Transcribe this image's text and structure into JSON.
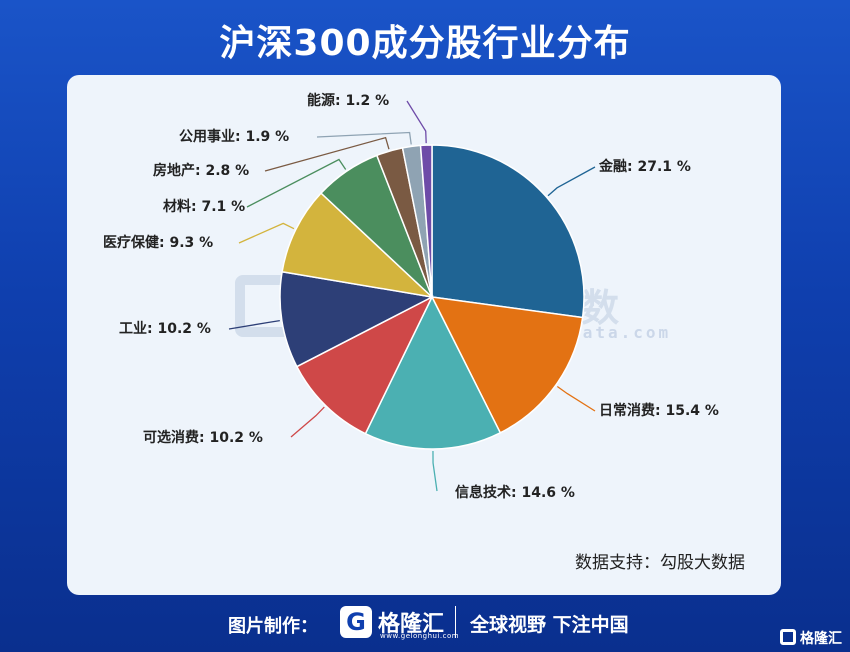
{
  "title": "沪深300成分股行业分布",
  "source": "数据支持：勾股大数据",
  "watermark": {
    "text": "勾股大数据",
    "url": "www.gogudata.com"
  },
  "footer": {
    "label": "图片制作：",
    "brand": "格隆汇",
    "url": "www.gelonghui.com",
    "slogan": "全球视野 下注中国",
    "corner": "格隆汇"
  },
  "chart_data": {
    "type": "pie",
    "title": "沪深300成分股行业分布",
    "unit": "%",
    "slices": [
      {
        "label": "金融",
        "value": 27.1,
        "color": "#1f6494",
        "text": "金融: 27.1 %"
      },
      {
        "label": "日常消费",
        "value": 15.4,
        "color": "#e37213",
        "text": "日常消费: 15.4 %"
      },
      {
        "label": "信息技术",
        "value": 14.6,
        "color": "#4bb0b2",
        "text": "信息技术: 14.6 %"
      },
      {
        "label": "可选消费",
        "value": 10.2,
        "color": "#cf4848",
        "text": "可选消费: 10.2 %"
      },
      {
        "label": "工业",
        "value": 10.2,
        "color": "#2d3f77",
        "text": "工业: 10.2 %"
      },
      {
        "label": "医疗保健",
        "value": 9.3,
        "color": "#d3b43d",
        "text": "医疗保健: 9.3 %"
      },
      {
        "label": "材料",
        "value": 7.1,
        "color": "#4b8e5e",
        "text": "材料: 7.1 %"
      },
      {
        "label": "房地产",
        "value": 2.8,
        "color": "#7a5a43",
        "text": "房地产: 2.8 %"
      },
      {
        "label": "公用事业",
        "value": 1.9,
        "color": "#8fa3b3",
        "text": "公用事业: 1.9 %"
      },
      {
        "label": "能源",
        "value": 1.2,
        "color": "#6e4ba8",
        "text": "能源: 1.2 %"
      }
    ]
  }
}
